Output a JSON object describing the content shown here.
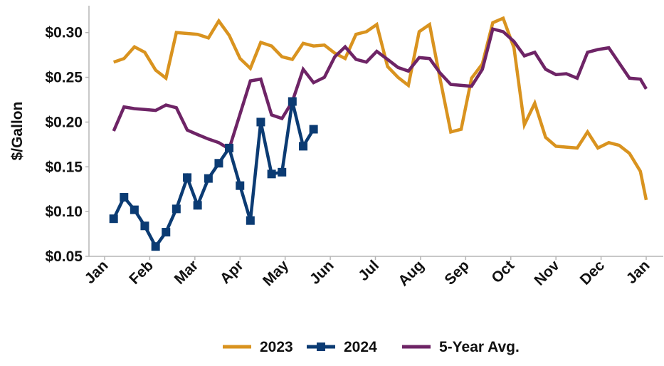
{
  "chart_data": {
    "type": "line",
    "title": "",
    "ylabel": "$/Gallon",
    "xlabel": "",
    "ylim": [
      0.05,
      0.33
    ],
    "yticks": [
      0.05,
      0.1,
      0.15,
      0.2,
      0.25,
      0.3
    ],
    "ytick_labels": [
      "$0.05",
      "$0.10",
      "$0.15",
      "$0.20",
      "$0.25",
      "$0.30"
    ],
    "xlim": [
      0,
      12
    ],
    "x_units": "months since Jan",
    "xtick_positions": [
      0,
      1,
      2,
      3,
      4,
      5,
      6,
      7,
      8,
      9,
      10,
      11,
      12
    ],
    "xtick_labels": [
      "Jan",
      "Feb",
      "Mar",
      "Apr",
      "May",
      "Jun",
      "Jul",
      "Aug",
      "Sep",
      "Oct",
      "Nov",
      "Dec",
      "Jan"
    ],
    "grid": false,
    "legend_position": "bottom",
    "series": [
      {
        "name": "2023",
        "color": "#D9931F",
        "marker": "none",
        "x": [
          0.2,
          0.43,
          0.66,
          0.89,
          1.13,
          1.36,
          1.59,
          1.83,
          2.06,
          2.3,
          2.53,
          2.76,
          3.0,
          3.23,
          3.46,
          3.7,
          3.93,
          4.16,
          4.4,
          4.63,
          4.87,
          5.1,
          5.33,
          5.57,
          5.8,
          6.03,
          6.27,
          6.5,
          6.73,
          6.97,
          7.2,
          7.43,
          7.67,
          7.9,
          8.13,
          8.37,
          8.6,
          8.83,
          9.07,
          9.3,
          9.53,
          9.77,
          10.0,
          10.23,
          10.47,
          10.7,
          10.93,
          11.17,
          11.4,
          11.63,
          11.87,
          12.0
        ],
        "values": [
          0.267,
          0.271,
          0.284,
          0.278,
          0.258,
          0.249,
          0.3,
          0.299,
          0.298,
          0.294,
          0.313,
          0.297,
          0.271,
          0.26,
          0.289,
          0.285,
          0.273,
          0.27,
          0.288,
          0.285,
          0.286,
          0.277,
          0.271,
          0.298,
          0.301,
          0.309,
          0.262,
          0.25,
          0.241,
          0.301,
          0.309,
          0.249,
          0.189,
          0.192,
          0.249,
          0.265,
          0.311,
          0.316,
          0.283,
          0.197,
          0.221,
          0.183,
          0.173,
          0.172,
          0.171,
          0.189,
          0.171,
          0.177,
          0.174,
          0.165,
          0.145,
          0.113
        ]
      },
      {
        "name": "2024",
        "color": "#0B3B73",
        "marker": "square",
        "x": [
          0.2,
          0.43,
          0.66,
          0.89,
          1.13,
          1.36,
          1.59,
          1.83,
          2.06,
          2.3,
          2.53,
          2.76,
          3.0,
          3.23,
          3.46,
          3.7,
          3.93,
          4.16,
          4.4,
          4.63
        ],
        "values": [
          0.092,
          0.116,
          0.102,
          0.084,
          0.061,
          0.077,
          0.103,
          0.138,
          0.107,
          0.137,
          0.154,
          0.171,
          0.129,
          0.09,
          0.2,
          0.142,
          0.144,
          0.223,
          0.173,
          0.192
        ]
      },
      {
        "name": "5-Year Avg.",
        "color": "#6E2466",
        "marker": "none",
        "x": [
          0.2,
          0.43,
          0.66,
          0.89,
          1.13,
          1.36,
          1.59,
          1.83,
          2.06,
          2.3,
          2.53,
          2.76,
          3.0,
          3.23,
          3.46,
          3.7,
          3.93,
          4.16,
          4.4,
          4.63,
          4.87,
          5.1,
          5.33,
          5.57,
          5.8,
          6.03,
          6.27,
          6.5,
          6.73,
          6.97,
          7.2,
          7.43,
          7.67,
          7.9,
          8.13,
          8.37,
          8.6,
          8.83,
          9.07,
          9.3,
          9.53,
          9.77,
          10.0,
          10.23,
          10.47,
          10.7,
          10.93,
          11.17,
          11.4,
          11.63,
          11.87,
          12.0
        ],
        "values": [
          0.19,
          0.217,
          0.215,
          0.214,
          0.213,
          0.219,
          0.216,
          0.191,
          0.186,
          0.181,
          0.177,
          0.17,
          0.209,
          0.246,
          0.248,
          0.208,
          0.204,
          0.223,
          0.259,
          0.244,
          0.25,
          0.273,
          0.284,
          0.27,
          0.267,
          0.279,
          0.27,
          0.261,
          0.257,
          0.272,
          0.271,
          0.255,
          0.242,
          0.241,
          0.24,
          0.259,
          0.304,
          0.301,
          0.29,
          0.274,
          0.278,
          0.259,
          0.253,
          0.254,
          0.249,
          0.278,
          0.281,
          0.283,
          0.266,
          0.249,
          0.248,
          0.237
        ]
      }
    ]
  }
}
